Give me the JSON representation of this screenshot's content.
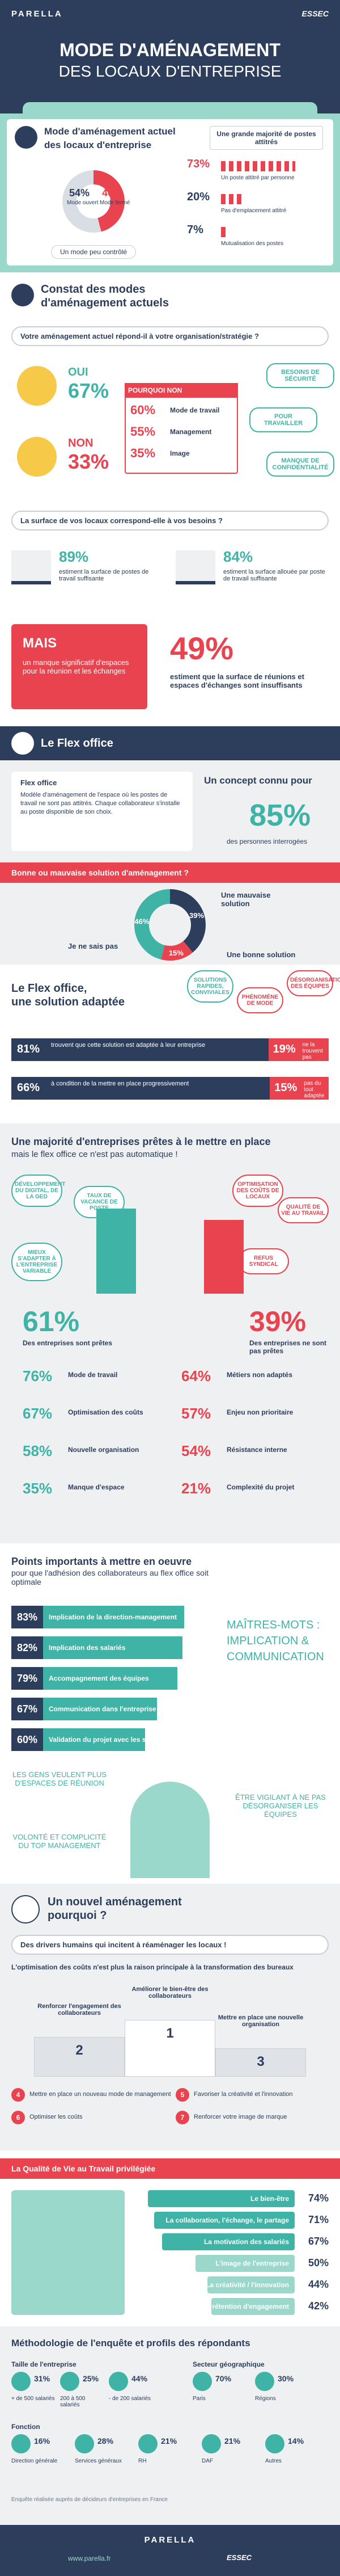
{
  "header": {
    "brand": "PARELLA",
    "partner": "ESSEC",
    "title_line1": "MODE D'AMÉNAGEMENT",
    "title_line2": "DES LOCAUX D'ENTREPRISE"
  },
  "current": {
    "title": "Mode d'aménagement actuel des locaux d'entreprise",
    "open": {
      "value": "54%",
      "label": "Mode ouvert"
    },
    "closed": {
      "value": "46%",
      "label": "Mode fermé"
    },
    "caption": "Un mode peu contrôlé",
    "posts_title": "Une grande majorité de postes attitrés",
    "posts": [
      [
        "73%",
        "Un poste attitré par personne"
      ],
      [
        "20%",
        "Pas d'emplacement attitré"
      ],
      [
        "7%",
        "Mutualisation des postes"
      ]
    ]
  },
  "findings": {
    "title": "Constat des modes d'aménagement actuels",
    "question": "Votre aménagement actuel répond-il à votre organisation/stratégie ?",
    "yes": {
      "label": "OUI",
      "value": "67%"
    },
    "no": {
      "label": "NON",
      "value": "33%"
    },
    "why_title": "POURQUOI NON",
    "why": [
      [
        "60%",
        "Mode de travail"
      ],
      [
        "55%",
        "Management"
      ],
      [
        "35%",
        "Image"
      ]
    ],
    "bubbles": [
      "Besoins de sécurité",
      "Pour travailler",
      "Manque de confidentialité"
    ],
    "surface_question": "La surface de vos locaux correspond-elle à vos besoins ?",
    "surface": [
      [
        "89%",
        "estiment la surface de postes de travail suffisante"
      ],
      [
        "84%",
        "estiment la surface allouée par poste de travail suffisante"
      ]
    ],
    "but_title": "MAIS",
    "but_text": "un manque significatif d'espaces pour la réunion et les échanges",
    "but_value": "49%",
    "but_caption": "estiment que la surface de réunions et espaces d'échanges sont insuffisants"
  },
  "flex": {
    "title": "Le Flex office",
    "def_title": "Flex office",
    "def_text": "Modèle d'aménagement de l'espace où les postes de travail ne sont pas attitrés. Chaque collaborateur s'installe au poste disponible de son choix.",
    "known_prefix": "Un concept connu pour",
    "known_value": "85%",
    "known_suffix": "des personnes interrogées",
    "question": "Bonne ou mauvaise solution d'aménagement ?",
    "answers": [
      [
        "39%",
        "Je ne sais pas"
      ],
      [
        "15%",
        "Une mauvaise solution"
      ],
      [
        "46%",
        "Une bonne solution"
      ]
    ]
  },
  "adapted": {
    "title_line1": "Le Flex office,",
    "title_line2": "une solution adaptée",
    "bubbles": [
      "Solutions rapides, conviviales",
      "Phénomène de mode",
      "Désorganisation des équipes"
    ],
    "rows": [
      [
        [
          "81%",
          "trouvent que cette solution est adaptée à leur entreprise"
        ],
        [
          "19%",
          "ne la trouvent pas adaptée"
        ]
      ],
      [
        [
          "66%",
          "à condition de la mettre en place progressivement"
        ],
        [
          "15%",
          "pas du tout adaptée"
        ]
      ]
    ]
  },
  "ready": {
    "title": "Une majorité d'entreprises prêtes à le mettre en place",
    "subtitle": "mais le flex office ce n'est pas automatique !",
    "bubbles": [
      "Développement du digital, de la GED",
      "Taux de vacance de poste",
      "Mieux s'adapter à l'entreprise variable",
      "Optimisation des coûts de locaux",
      "Qualité de vie au travail",
      "Refus syndical"
    ],
    "yes_value": "61%",
    "yes_label": "Des entreprises sont prêtes",
    "no_value": "39%",
    "no_label": "Des entreprises ne sont pas prêtes",
    "yes_reasons": [
      [
        "76%",
        "Mode de travail"
      ],
      [
        "67%",
        "Optimisation des coûts"
      ],
      [
        "58%",
        "Nouvelle organisation"
      ],
      [
        "35%",
        "Manque d'espace"
      ]
    ],
    "no_reasons": [
      [
        "64%",
        "Métiers non adaptés"
      ],
      [
        "57%",
        "Enjeu non prioritaire"
      ],
      [
        "54%",
        "Résistance interne"
      ],
      [
        "21%",
        "Complexité du projet"
      ]
    ]
  },
  "points": {
    "title_line1": "Points importants à mettre en oeuvre",
    "title_line2": "pour que l'adhésion des collaborateurs au flex office soit optimale",
    "rows": [
      [
        "83%",
        "Implication de la direction-management"
      ],
      [
        "82%",
        "Implication des salariés"
      ],
      [
        "79%",
        "Accompagnement des équipes"
      ],
      [
        "67%",
        "Communication dans l'entreprise"
      ],
      [
        "60%",
        "Validation du projet avec les salariés"
      ]
    ],
    "keywords": "Maîtres-mots : implication & communication",
    "quotes": [
      "Les gens veulent plus d'espaces de réunion",
      "Être vigilant à ne pas désorganiser les équipes",
      "Volonté et complicité du top management"
    ]
  },
  "why": {
    "title_line1": "Un nouvel aménagement",
    "title_line2": "pourquoi ?",
    "drivers": "Des drivers humains qui incitent à réaménager les locaux !",
    "costs": "L'optimisation des coûts n'est plus la raison principale à la transformation des bureaux",
    "podium": [
      [
        "2",
        "Renforcer l'engagement des collaborateurs"
      ],
      [
        "1",
        "Améliorer le bien-être des collaborateurs"
      ],
      [
        "3",
        "Mettre en place une nouvelle organisation"
      ]
    ],
    "others": [
      [
        "4",
        "Mettre en place un nouveau mode de management"
      ],
      [
        "5",
        "Favoriser la créativité et l'innovation"
      ],
      [
        "6",
        "Optimiser les coûts"
      ],
      [
        "7",
        "Renforcer votre image de marque"
      ]
    ]
  },
  "qvt": {
    "title": "La Qualité de Vie au Travail privilégiée",
    "rows": [
      [
        "Le bien-être",
        "74%"
      ],
      [
        "La collaboration, l'échange, le partage",
        "71%"
      ],
      [
        "La motivation des salariés",
        "67%"
      ],
      [
        "L'image de l'entreprise",
        "50%"
      ],
      [
        "La créativité / l'innovation",
        "44%"
      ],
      [
        "La fidélité et rétention d'engagement",
        "42%"
      ]
    ]
  },
  "method": {
    "title": "Méthodologie de l'enquête et profils des répondants",
    "size_title": "Taille de l'entreprise",
    "sizes": [
      [
        "31%",
        "+ de 500 salariés"
      ],
      [
        "25%",
        "200 à 500 salariés"
      ],
      [
        "44%",
        "- de 200 salariés"
      ]
    ],
    "geo_title": "Secteur géographique",
    "geo": [
      [
        "70%",
        "Paris"
      ],
      [
        "30%",
        "Régions"
      ]
    ],
    "role_title": "Fonction",
    "roles": [
      [
        "16%",
        "Direction générale"
      ],
      [
        "28%",
        "Services généraux"
      ],
      [
        "21%",
        "RH"
      ],
      [
        "21%",
        "DAF"
      ],
      [
        "14%",
        "Autres"
      ]
    ],
    "note": "Enquête réalisée auprès de décideurs d'entreprises en France"
  },
  "footer": {
    "brand": "PARELLA",
    "partner": "ESSEC",
    "site": "www.parella.fr"
  }
}
